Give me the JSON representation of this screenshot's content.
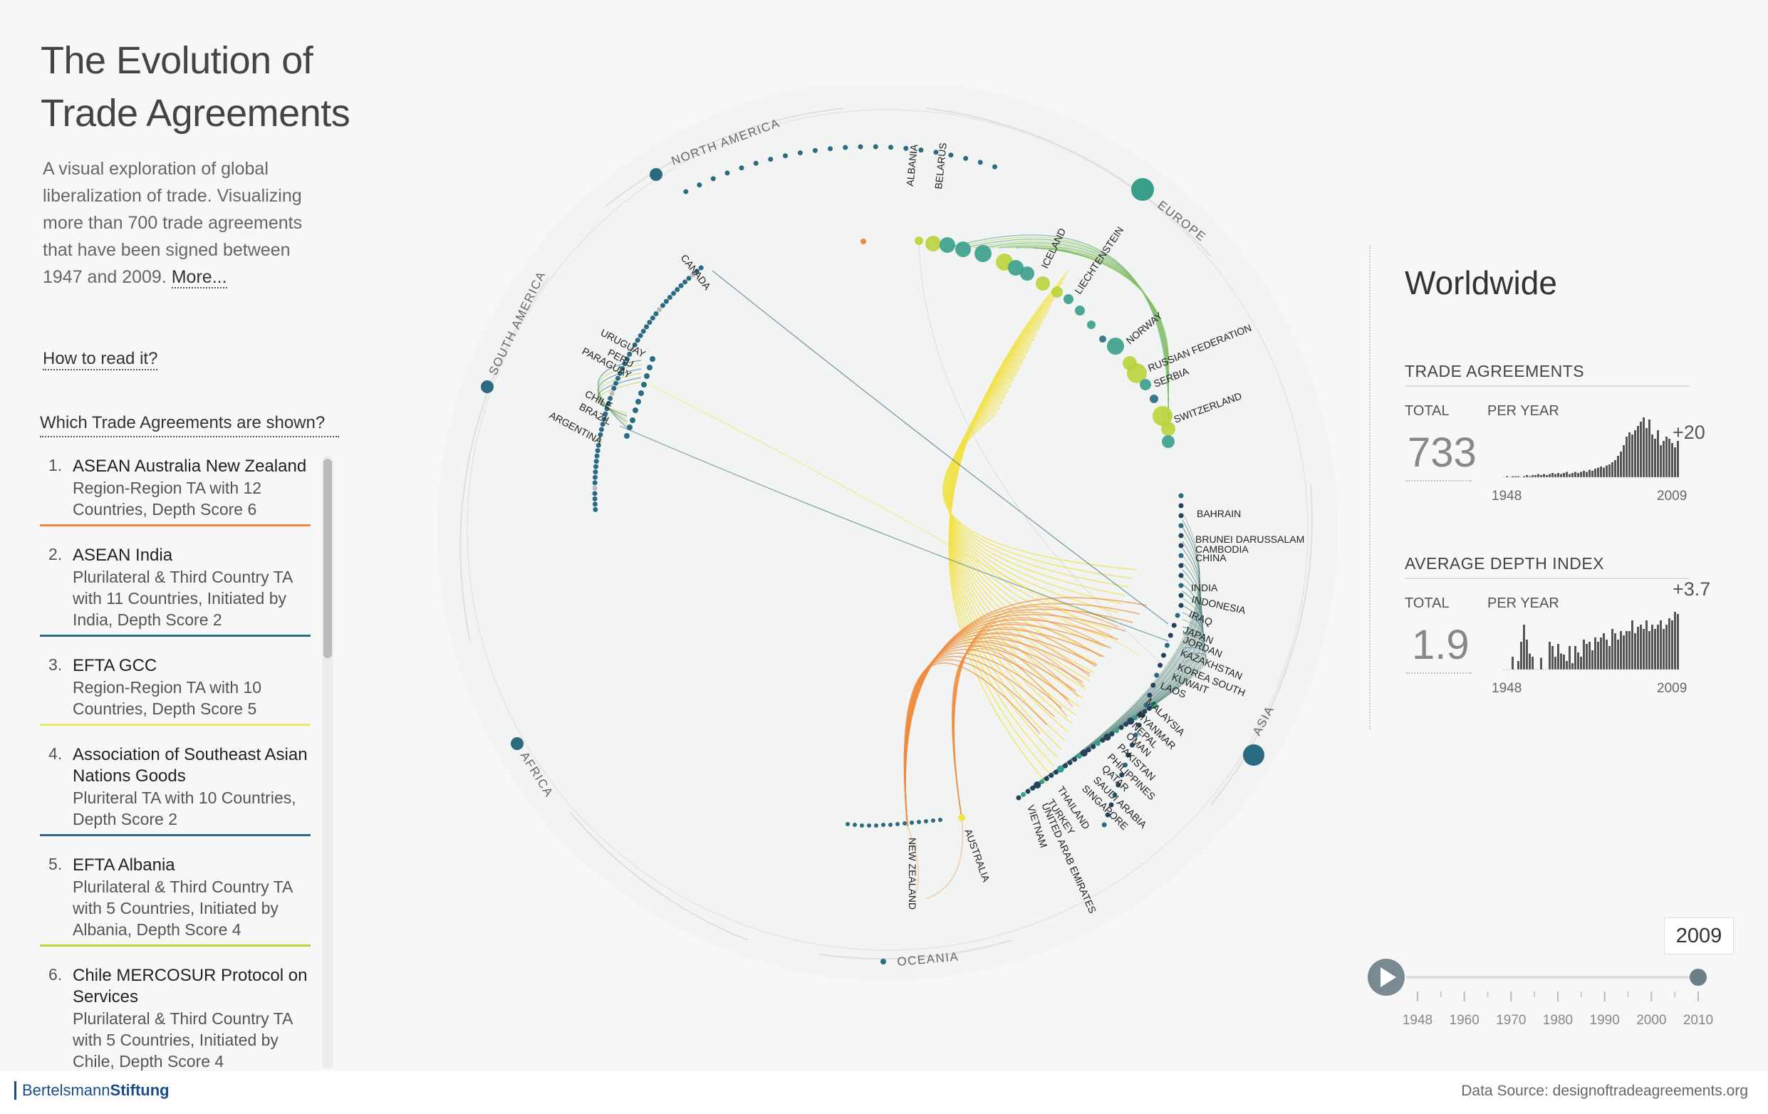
{
  "header": {
    "title_line1": "The Evolution of",
    "title_line2": "Trade Agreements",
    "intro": "A visual exploration of global liberalization of trade. Visualizing more than 700 trade agreements that have been signed between 1947 and 2009.",
    "more_link": "More...",
    "how_to_link": "How to read it?",
    "list_heading": "Which Trade Agreements are shown?"
  },
  "agreements": [
    {
      "num": "1.",
      "name": "ASEAN Australia New Zealand",
      "desc": "Region-Region TA with 12 Countries, Depth Score 6",
      "color": "#f08a3c"
    },
    {
      "num": "2.",
      "name": "ASEAN India",
      "desc": "Plurilateral & Third Country TA with 11 Countries, Initiated by India, Depth Score 2",
      "color": "#2a6b80"
    },
    {
      "num": "3.",
      "name": "EFTA GCC",
      "desc": "Region-Region TA with 10 Countries, Depth Score 5",
      "color": "#e8e86a"
    },
    {
      "num": "4.",
      "name": "Association of Southeast Asian Nations Goods",
      "desc": "Pluriteral TA with 10 Countries, Depth Score 2",
      "color": "#2a6b80"
    },
    {
      "num": "5.",
      "name": "EFTA Albania",
      "desc": "Plurilateral & Third Country TA with 5 Countries, Initiated by Albania, Depth Score 4",
      "color": "#b8d43a"
    },
    {
      "num": "6.",
      "name": "Chile MERCOSUR Protocol on Services",
      "desc": "Plurilateral & Third Country TA with 5 Countries, Initiated by Chile, Depth Score 4",
      "color": "#2a6b80"
    }
  ],
  "regions": [
    "NORTH AMERICA",
    "EUROPE",
    "SOUTH AMERICA",
    "AFRICA",
    "OCEANIA",
    "ASIA"
  ],
  "countries": {
    "north_america": [
      "CANADA"
    ],
    "south_america": [
      "URUGUAY",
      "PERU",
      "PARAGUAY",
      "CHILE",
      "BRAZIL",
      "ARGENTINA"
    ],
    "europe": [
      "ALBANIA",
      "BELARUS",
      "ICELAND",
      "LIECHTENSTEIN",
      "NORWAY",
      "RUSSIAN FEDERATION",
      "SERBIA",
      "SWITZERLAND"
    ],
    "asia": [
      "BAHRAIN",
      "BRUNEI DARUSSALAM",
      "CAMBODIA",
      "CHINA",
      "INDIA",
      "INDONESIA",
      "IRAQ",
      "JAPAN",
      "JORDAN",
      "KAZAKHSTAN",
      "KOREA SOUTH",
      "KUWAIT",
      "LAOS",
      "MALAYSIA",
      "MYANMAR",
      "NEPAL",
      "OMAN",
      "PAKISTAN",
      "PHILIPPINES",
      "QATAR",
      "SAUDI ARABIA",
      "SINGAPORE",
      "THAILAND",
      "TURKEY",
      "UNITED ARAB EMIRATES",
      "VIETNAM"
    ],
    "oceania": [
      "NEW ZEALAND",
      "AUSTRALIA"
    ]
  },
  "stats": {
    "scope": "Worldwide",
    "trade_agreements": {
      "heading": "TRADE AGREEMENTS",
      "total_label": "TOTAL",
      "per_year_label": "PER YEAR",
      "total": "733",
      "delta": "+20",
      "start_year": "1948",
      "end_year": "2009"
    },
    "depth_index": {
      "heading": "AVERAGE DEPTH INDEX",
      "total_label": "TOTAL",
      "per_year_label": "PER YEAR",
      "total": "1.9",
      "delta": "+3.7",
      "start_year": "1948",
      "end_year": "2009"
    }
  },
  "chart_data": [
    {
      "type": "bar",
      "title": "TRADE AGREEMENTS",
      "xlabel": "",
      "ylabel": "",
      "x_range": [
        "1948",
        "2009"
      ],
      "values": [
        0,
        1,
        0,
        1,
        1,
        1,
        0,
        1,
        2,
        1,
        2,
        2,
        3,
        2,
        3,
        2,
        3,
        4,
        3,
        4,
        3,
        4,
        5,
        3,
        4,
        5,
        4,
        5,
        6,
        5,
        7,
        6,
        8,
        9,
        10,
        9,
        11,
        12,
        14,
        16,
        20,
        24,
        30,
        38,
        42,
        40,
        44,
        48,
        52,
        56,
        46,
        54,
        40,
        36,
        44,
        30,
        34,
        38,
        36,
        32,
        28,
        34
      ]
    },
    {
      "type": "bar",
      "title": "AVERAGE DEPTH INDEX",
      "xlabel": "",
      "ylabel": "",
      "x_range": [
        "1948",
        "2009"
      ],
      "values": [
        0,
        0,
        0,
        1.2,
        0,
        0.8,
        2.6,
        4.2,
        2.8,
        1.5,
        1.2,
        0,
        0,
        1.1,
        0,
        0,
        2.6,
        2.2,
        1.2,
        2.4,
        1.5,
        1.4,
        0.8,
        2.2,
        0.6,
        2.2,
        1.6,
        1.2,
        2.8,
        2.4,
        2.6,
        1.8,
        3,
        2.6,
        3,
        3.4,
        2.8,
        2.2,
        3.8,
        3.4,
        2.8,
        3.6,
        3.2,
        3.6,
        3.6,
        4.6,
        3.4,
        4,
        4.2,
        3.8,
        4.6,
        3.6,
        4.2,
        3.8,
        4.2,
        4.6,
        3.8,
        4.2,
        4.8,
        4.6,
        5.4,
        5.2
      ]
    }
  ],
  "timeline": {
    "current_year": "2009",
    "ticks": [
      "1948",
      "1960",
      "1970",
      "1980",
      "1990",
      "2000",
      "2010"
    ]
  },
  "footer": {
    "logo_part1": "Bertelsmann",
    "logo_part2": "Stiftung",
    "source": "Data Source: designoftradeagreements.org"
  },
  "colors": {
    "teal": "#2a6b80",
    "green": "#3a9e8c",
    "lime": "#b8d43a",
    "yellow": "#f2e24a",
    "orange": "#f08a3c"
  }
}
